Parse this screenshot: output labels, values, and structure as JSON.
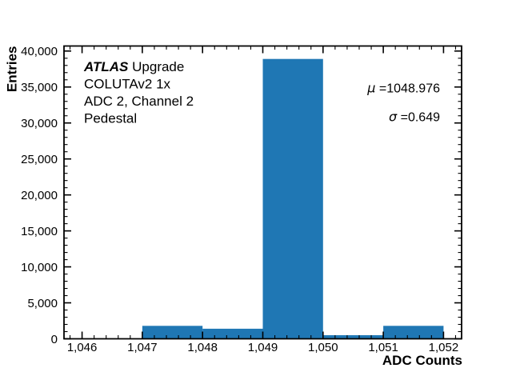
{
  "chart_data": {
    "type": "bar",
    "xlabel": "ADC Counts",
    "ylabel": "Entries",
    "xlim": [
      1045.7,
      1052.3
    ],
    "ylim": [
      0,
      40700
    ],
    "bin_edges": [
      1046,
      1047,
      1048,
      1049,
      1050,
      1051,
      1052
    ],
    "bin_counts": [
      0,
      1800,
      1400,
      38900,
      500,
      1800
    ],
    "bar_color": "#1f77b4",
    "x_major_ticks": [
      1046,
      1047,
      1048,
      1049,
      1050,
      1051,
      1052
    ],
    "x_tick_labels": [
      "1,046",
      "1,047",
      "1,048",
      "1,049",
      "1,050",
      "1,051",
      "1,052"
    ],
    "x_minor_step": 0.2,
    "y_major_ticks": [
      0,
      5000,
      10000,
      15000,
      20000,
      25000,
      30000,
      35000,
      40000
    ],
    "y_tick_labels": [
      "0",
      "5,000",
      "10,000",
      "15,000",
      "20,000",
      "25,000",
      "30,000",
      "35,000",
      "40,000"
    ],
    "y_minor_step": 1000,
    "grid": false,
    "legend": "none",
    "stats": {
      "mu": 1048.976,
      "sigma": 0.649
    }
  },
  "annotation": {
    "experiment": "ATLAS",
    "experiment_suffix": " Upgrade",
    "line2": "COLUTAv2 1x",
    "line3": "ADC 2, Channel 2",
    "line4": "Pedestal"
  },
  "stats_display": {
    "mu_symbol": "μ",
    "mu_value": " =1048.976",
    "sigma_symbol": "σ",
    "sigma_value": " =0.649"
  }
}
